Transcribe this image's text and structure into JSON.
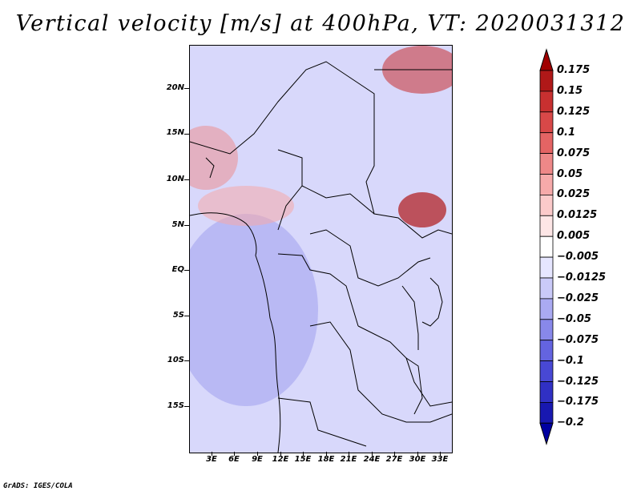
{
  "title": "Vertical velocity [m/s] at 400hPa, VT: 2020031312",
  "credit": "GrADS: IGES/COLA",
  "map": {
    "projection": "lat-lon",
    "lat_labels": [
      "20N",
      "15N",
      "10N",
      "5N",
      "EQ",
      "5S",
      "10S",
      "15S"
    ],
    "lon_labels": [
      "3E",
      "6E",
      "9E",
      "12E",
      "15E",
      "18E",
      "21E",
      "24E",
      "27E",
      "30E",
      "33E"
    ],
    "field": "vertical velocity",
    "colors": {
      "positive": "#b01818",
      "negative": "#2020b0",
      "background": "#e4e4ff",
      "coast": "#000000"
    }
  },
  "colorbar": {
    "levels": [
      "0.175",
      "0.15",
      "0.125",
      "0.1",
      "0.075",
      "0.05",
      "0.025",
      "0.0125",
      "0.005",
      "-0.005",
      "-0.0125",
      "-0.025",
      "-0.05",
      "-0.075",
      "-0.1",
      "-0.125",
      "-0.175",
      "-0.2"
    ],
    "colors": [
      "#a00000",
      "#b01818",
      "#c83030",
      "#d84848",
      "#e46464",
      "#ee8888",
      "#f6aaaa",
      "#fbcaca",
      "#fde6e6",
      "#ffffff",
      "#e6e6ff",
      "#cacaf8",
      "#aaaaf2",
      "#8888ea",
      "#6464e0",
      "#4848d4",
      "#3030c4",
      "#1818b0",
      "#0000a0"
    ]
  }
}
